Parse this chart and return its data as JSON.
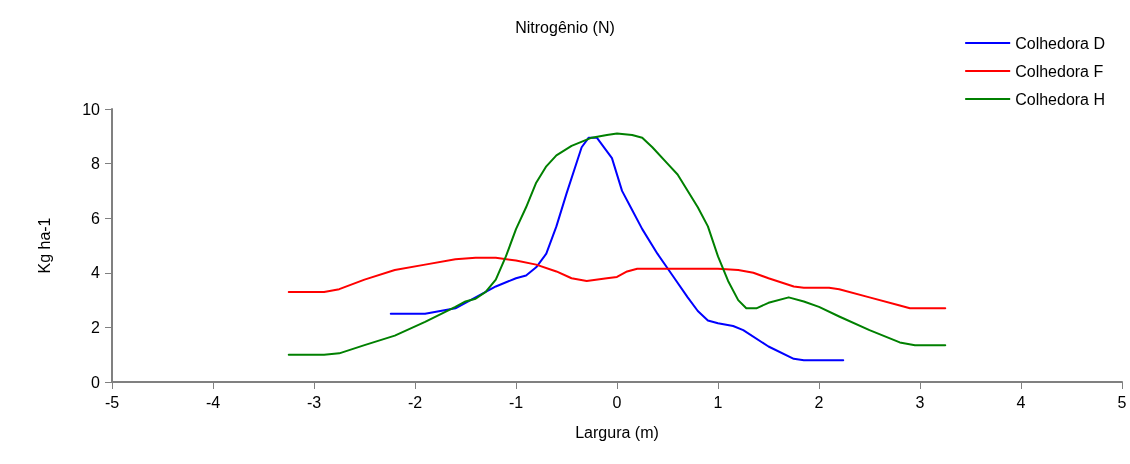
{
  "chart_data": {
    "type": "line",
    "title": "Nitrogênio (N)",
    "xlabel": "Largura (m)",
    "ylabel": "Kg ha-1",
    "xlim": [
      -5,
      5
    ],
    "xticks": [
      -5,
      -4,
      -3,
      -2,
      -1,
      0,
      1,
      2,
      3,
      4,
      5
    ],
    "ylim": [
      0,
      10
    ],
    "yticks": [
      0,
      2,
      4,
      6,
      8,
      10
    ],
    "grid": false,
    "legend": "top right",
    "marker": "none",
    "line_style": "solid",
    "series": [
      {
        "name": "Colhedora D",
        "color": "#0000ff",
        "x": [
          -2.24,
          -1.9,
          -1.6,
          -1.4,
          -1.2,
          -1.0,
          -0.9,
          -0.8,
          -0.7,
          -0.6,
          -0.5,
          -0.35,
          -0.28,
          -0.2,
          -0.05,
          0.05,
          0.15,
          0.25,
          0.4,
          0.55,
          0.7,
          0.8,
          0.9,
          1.0,
          1.15,
          1.25,
          1.5,
          1.75,
          1.85,
          2.24
        ],
        "values": [
          2.5,
          2.5,
          2.7,
          3.1,
          3.5,
          3.8,
          3.9,
          4.2,
          4.7,
          5.7,
          6.9,
          8.6,
          8.95,
          8.95,
          8.2,
          7.0,
          6.3,
          5.6,
          4.7,
          3.9,
          3.1,
          2.6,
          2.25,
          2.15,
          2.05,
          1.9,
          1.3,
          0.85,
          0.8,
          0.8
        ]
      },
      {
        "name": "Colhedora F",
        "color": "#ff0000",
        "x": [
          -3.25,
          -2.9,
          -2.75,
          -2.5,
          -2.2,
          -1.9,
          -1.6,
          -1.4,
          -1.2,
          -1.0,
          -0.8,
          -0.6,
          -0.45,
          -0.3,
          -0.1,
          0.0,
          0.1,
          0.2,
          0.5,
          1.0,
          1.2,
          1.35,
          1.5,
          1.75,
          1.85,
          2.1,
          2.2,
          2.5,
          2.8,
          2.9,
          3.25
        ],
        "values": [
          3.3,
          3.3,
          3.4,
          3.75,
          4.1,
          4.3,
          4.5,
          4.55,
          4.55,
          4.45,
          4.3,
          4.05,
          3.8,
          3.7,
          3.8,
          3.85,
          4.05,
          4.15,
          4.15,
          4.15,
          4.1,
          4.0,
          3.8,
          3.5,
          3.45,
          3.45,
          3.4,
          3.1,
          2.8,
          2.7,
          2.7
        ]
      },
      {
        "name": "Colhedora H",
        "color": "#008000",
        "x": [
          -3.25,
          -2.9,
          -2.75,
          -2.5,
          -2.2,
          -1.9,
          -1.6,
          -1.5,
          -1.4,
          -1.3,
          -1.2,
          -1.1,
          -1.0,
          -0.9,
          -0.8,
          -0.7,
          -0.6,
          -0.45,
          -0.25,
          -0.1,
          0.0,
          0.15,
          0.25,
          0.35,
          0.5,
          0.6,
          0.8,
          0.9,
          1.0,
          1.1,
          1.2,
          1.28,
          1.38,
          1.5,
          1.7,
          1.85,
          2.0,
          2.2,
          2.5,
          2.8,
          2.95,
          3.25
        ],
        "values": [
          1.0,
          1.0,
          1.05,
          1.35,
          1.7,
          2.2,
          2.75,
          2.95,
          3.05,
          3.3,
          3.75,
          4.6,
          5.6,
          6.4,
          7.3,
          7.9,
          8.3,
          8.65,
          8.95,
          9.05,
          9.1,
          9.05,
          8.95,
          8.6,
          8.0,
          7.6,
          6.4,
          5.7,
          4.6,
          3.7,
          3.0,
          2.7,
          2.7,
          2.9,
          3.1,
          2.95,
          2.75,
          2.4,
          1.9,
          1.45,
          1.35,
          1.35
        ]
      }
    ]
  }
}
